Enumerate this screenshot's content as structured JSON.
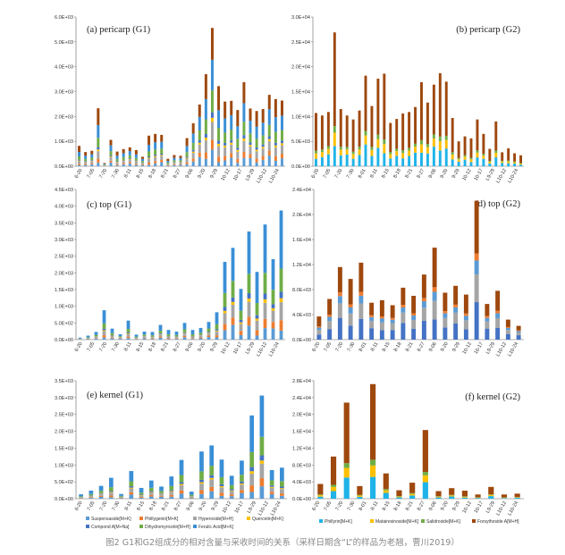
{
  "figure": {
    "caption": "图2 G1和G2组成分的相对含量与采收时间的关系（采样日期含“L”的样品为老翘，曹川2019）"
  },
  "legend_g1": [
    {
      "label": "Suspensaside[M+K]",
      "color": "#5b9bd5"
    },
    {
      "label": "Phillygenin[M+K]",
      "color": "#ed7d31"
    },
    {
      "label": "Hyperoside[M+H]",
      "color": "#a5a5a5"
    },
    {
      "label": "Quercetin[M+K]",
      "color": "#ffc000"
    },
    {
      "label": "Compond A[M+Na]",
      "color": "#4472c4"
    },
    {
      "label": "Dihydromyricetin[M+H]",
      "color": "#70ad47"
    },
    {
      "label": "Ferulic Acid[M+K]",
      "color": "#3a8fd6"
    }
  ],
  "legend_g2": [
    {
      "label": "Phillyrin[M+K]",
      "color": "#1fb3e8"
    },
    {
      "label": "Matairesinoside[M+K]",
      "color": "#ffc000"
    },
    {
      "label": "Salidroside[M+K]",
      "color": "#70ad47"
    },
    {
      "label": "Forsythoside A[M+H]",
      "color": "#9e480e"
    }
  ],
  "chart_data": [
    {
      "type": "bar",
      "stacked": true,
      "title": "(a) pericarp (G1)",
      "legend_group": "g1",
      "yticks": [
        "0.0E+00",
        "1.0E+03",
        "2.0E+03",
        "3.0E+03",
        "4.0E+03",
        "5.0E+03",
        "6.0E+03"
      ],
      "ylim": [
        0,
        6000
      ],
      "xtick_labels": [
        "6-20",
        "7-05",
        "7-20",
        "7-30",
        "8-11",
        "8-15",
        "8-18",
        "8-21",
        "8-27",
        "9-06",
        "9-20",
        "9-29",
        "10-12",
        "10-17",
        "L9-29",
        "L10-12",
        "L10-24"
      ],
      "series_colors": [
        "#5b9bd5",
        "#ed7d31",
        "#a5a5a5",
        "#ffc000",
        "#4472c4",
        "#70ad47",
        "#3a8fd6",
        "#9e480e"
      ],
      "totals": [
        820,
        570,
        620,
        2330,
        130,
        1060,
        590,
        690,
        760,
        650,
        380,
        1230,
        1300,
        1260,
        300,
        450,
        420,
        1130,
        1730,
        2480,
        3700,
        5560,
        3220,
        2600,
        2630,
        2260,
        3380,
        2320,
        2220,
        2300,
        2870,
        2700,
        2640
      ]
    },
    {
      "type": "bar",
      "stacked": true,
      "title": "(b) pericarp (G2)",
      "legend_group": "g2",
      "yticks": [
        "0.0E+00",
        "5.0E+03",
        "1.0E+04",
        "1.5E+04",
        "2.0E+04",
        "2.5E+04",
        "3.0E+04"
      ],
      "ylim": [
        0,
        30000
      ],
      "xtick_labels": [
        "6-20",
        "7-05",
        "7-20",
        "7-30",
        "8-01",
        "8-11",
        "8-15",
        "8-18",
        "8-21",
        "8-27",
        "9-06",
        "9-20",
        "9-29",
        "10-12",
        "10-17",
        "L9-29",
        "L10-12",
        "L10-24"
      ],
      "series_colors": [
        "#1fb3e8",
        "#ffc000",
        "#70ad47",
        "#9e480e"
      ],
      "totals": [
        10700,
        10200,
        10900,
        26900,
        11500,
        10200,
        9400,
        11200,
        18200,
        12100,
        17600,
        18600,
        8700,
        9500,
        10600,
        10900,
        11900,
        16900,
        12800,
        16400,
        18700,
        17000,
        9700,
        5000,
        6000,
        5600,
        9400,
        6500,
        3500,
        9000,
        2800,
        3600,
        2600,
        2200
      ]
    },
    {
      "type": "bar",
      "stacked": true,
      "title": "(c) top (G1)",
      "legend_group": "g1",
      "yticks": [
        "0.0E+00",
        "5.0E+02",
        "1.0E+03",
        "1.5E+03",
        "2.0E+03",
        "2.5E+03",
        "3.0E+03",
        "3.5E+03",
        "4.0E+03",
        "4.5E+03"
      ],
      "ylim": [
        0,
        4500
      ],
      "xtick_labels": [
        "6-20",
        "7-05",
        "7-20",
        "7-30",
        "8-11",
        "8-15",
        "8-18",
        "8-21",
        "8-27",
        "9-06",
        "9-20",
        "9-29",
        "10-12",
        "10-17",
        "L9-29",
        "L10-12",
        "L10-24"
      ],
      "series_colors": [
        "#5b9bd5",
        "#ed7d31",
        "#a5a5a5",
        "#ffc000",
        "#4472c4",
        "#70ad47",
        "#3a8fd6"
      ],
      "totals": [
        60,
        120,
        230,
        880,
        330,
        160,
        570,
        150,
        240,
        230,
        440,
        290,
        240,
        500,
        290,
        350,
        530,
        820,
        2330,
        2750,
        1520,
        3240,
        2030,
        3450,
        2410,
        3870
      ]
    },
    {
      "type": "bar",
      "stacked": true,
      "title": "(d) top (G2)",
      "legend_group": "g2",
      "yticks": [
        "0.0E+00",
        "4.0E+03",
        "8.0E+03",
        "1.2E+04",
        "1.6E+04",
        "2.0E+04",
        "2.4E+04"
      ],
      "ylim": [
        0,
        24000
      ],
      "xtick_labels": [
        "6-20",
        "7-05",
        "7-20",
        "7-30",
        "8-01",
        "8-11",
        "8-15",
        "8-18",
        "8-21",
        "8-27",
        "9-06",
        "9-20",
        "9-29",
        "10-12",
        "10-17",
        "L9-29",
        "L10-12",
        "L10-24"
      ],
      "series_colors": [
        "#4472c4",
        "#a5a5a5",
        "#5b9bd5",
        "#ed7d31",
        "#9e480e"
      ],
      "totals": [
        3700,
        6500,
        11600,
        9700,
        12300,
        5900,
        6300,
        5500,
        8300,
        7000,
        10400,
        14700,
        7500,
        8600,
        7200,
        22200,
        5700,
        7800,
        3200,
        2200
      ]
    },
    {
      "type": "bar",
      "stacked": true,
      "title": "(e) kernel (G1)",
      "legend_group": "g1",
      "yticks": [
        "0.0E+00",
        "5.0E+02",
        "1.0E+03",
        "1.5E+03",
        "2.0E+03",
        "2.5E+03",
        "3.0E+03",
        "3.5E+03"
      ],
      "ylim": [
        0,
        3500
      ],
      "xtick_labels": [
        "6-20",
        "7-05",
        "7-20",
        "7-30",
        "8-11",
        "8-15",
        "8-18",
        "8-21",
        "8-27",
        "9-06",
        "9-20",
        "9-29",
        "10-12",
        "10-17",
        "L9-29",
        "L10-12",
        "L10-24"
      ],
      "series_colors": [
        "#5b9bd5",
        "#ed7d31",
        "#a5a5a5",
        "#ffc000",
        "#4472c4",
        "#70ad47",
        "#3a8fd6"
      ],
      "totals": [
        130,
        240,
        380,
        620,
        140,
        820,
        320,
        540,
        360,
        660,
        1150,
        210,
        1400,
        1580,
        1160,
        680,
        1130,
        2470,
        3060,
        850,
        920
      ]
    },
    {
      "type": "bar",
      "stacked": true,
      "title": "(f) kernel (G2)",
      "legend_group": "g2",
      "yticks": [
        "0.0E+00",
        "4.0E+03",
        "8.0E+03",
        "1.2E+04",
        "1.6E+04",
        "2.0E+04",
        "2.4E+04",
        "2.8E+04"
      ],
      "ylim": [
        0,
        28000
      ],
      "xtick_labels": [
        "6-20",
        "7-05",
        "7-20",
        "7-30",
        "8-01",
        "8-11",
        "8-15",
        "8-18",
        "8-21",
        "8-27",
        "9-06",
        "9-20",
        "9-29",
        "10-12",
        "10-17",
        "L9-29",
        "L10-12",
        "L10-24"
      ],
      "series_colors": [
        "#1fb3e8",
        "#ffc000",
        "#70ad47",
        "#9e480e"
      ],
      "totals": [
        3500,
        10000,
        22800,
        3000,
        27200,
        6000,
        2000,
        3800,
        16300,
        1800,
        2500,
        1900,
        1000,
        2800,
        1000,
        1200
      ]
    }
  ]
}
